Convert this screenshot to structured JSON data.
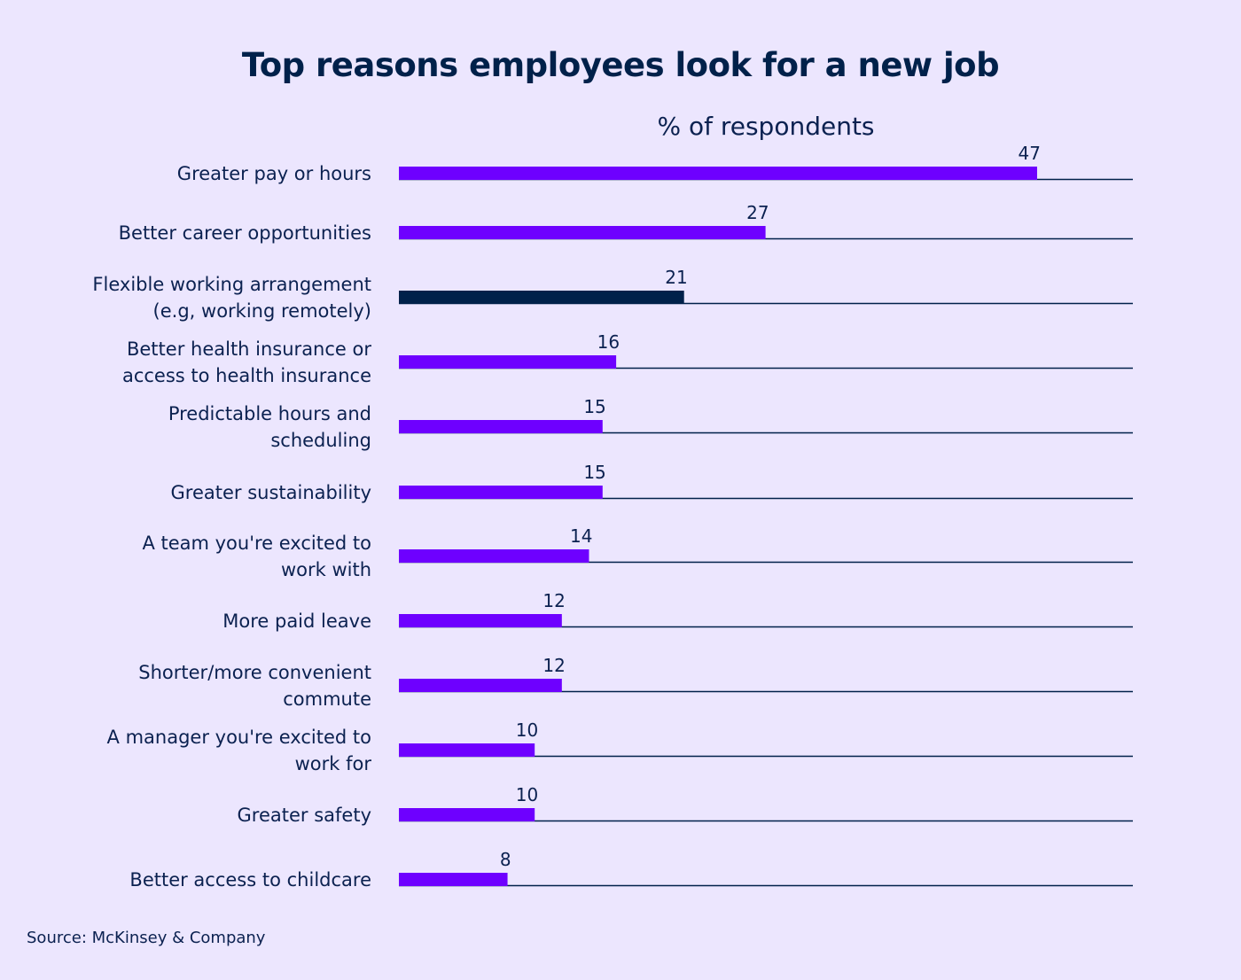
{
  "chart_data": {
    "type": "bar",
    "orientation": "horizontal",
    "title": "Top reasons employees look for a new job",
    "xlabel": "% of respondents",
    "ylabel": "",
    "categories": [
      [
        "Greater pay or hours"
      ],
      [
        "Better career opportunities"
      ],
      [
        "Flexible working arrangement",
        "(e.g, working remotely)"
      ],
      [
        "Better health insurance or",
        "access to health insurance"
      ],
      [
        "Predictable hours and",
        "scheduling"
      ],
      [
        "Greater sustainability"
      ],
      [
        "A team you're excited to",
        "work with"
      ],
      [
        "More paid leave"
      ],
      [
        "Shorter/more convenient",
        "commute"
      ],
      [
        "A manager you're excited to",
        "work for"
      ],
      [
        "Greater safety"
      ],
      [
        "Better access to childcare"
      ]
    ],
    "values": [
      47,
      27,
      21,
      16,
      15,
      15,
      14,
      12,
      12,
      10,
      10,
      8
    ],
    "highlight_index": 2,
    "xlim": [
      0,
      54
    ],
    "grid": false,
    "colors": {
      "bar": "#6E00FF",
      "highlight": "#00214A",
      "baseline": "#00214A",
      "background": "#ECE6FE"
    }
  },
  "source": "Source: McKinsey & Company"
}
